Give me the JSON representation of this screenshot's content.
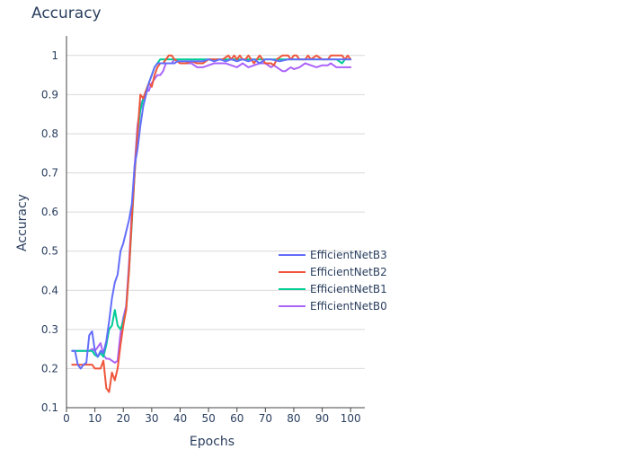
{
  "chart_data": {
    "type": "line",
    "title": "Accuracy",
    "xlabel": "Epochs",
    "ylabel": "Accuracy",
    "xlim": [
      0,
      105
    ],
    "ylim": [
      0.1,
      1.05
    ],
    "x_ticks": [
      0,
      10,
      20,
      30,
      40,
      50,
      60,
      70,
      80,
      90,
      100
    ],
    "y_ticks": [
      0.1,
      0.2,
      0.3,
      0.4,
      0.5,
      0.6,
      0.7,
      0.8,
      0.9,
      1
    ],
    "grid": "horizontal",
    "legend_position": "right",
    "series": [
      {
        "name": "EfficientNetB3",
        "color": "#636efa",
        "points": [
          [
            2,
            0.245
          ],
          [
            3,
            0.245
          ],
          [
            4,
            0.21
          ],
          [
            5,
            0.2
          ],
          [
            6,
            0.21
          ],
          [
            7,
            0.215
          ],
          [
            8,
            0.285
          ],
          [
            9,
            0.295
          ],
          [
            10,
            0.245
          ],
          [
            11,
            0.23
          ],
          [
            12,
            0.245
          ],
          [
            13,
            0.24
          ],
          [
            14,
            0.27
          ],
          [
            15,
            0.32
          ],
          [
            16,
            0.38
          ],
          [
            17,
            0.42
          ],
          [
            18,
            0.44
          ],
          [
            19,
            0.5
          ],
          [
            20,
            0.52
          ],
          [
            21,
            0.55
          ],
          [
            22,
            0.58
          ],
          [
            23,
            0.62
          ],
          [
            24,
            0.72
          ],
          [
            25,
            0.76
          ],
          [
            26,
            0.82
          ],
          [
            27,
            0.87
          ],
          [
            28,
            0.9
          ],
          [
            29,
            0.93
          ],
          [
            30,
            0.95
          ],
          [
            31,
            0.97
          ],
          [
            32,
            0.98
          ],
          [
            33,
            0.98
          ],
          [
            34,
            0.98
          ],
          [
            35,
            0.98
          ],
          [
            36,
            0.98
          ],
          [
            37,
            0.98
          ],
          [
            38,
            0.98
          ],
          [
            39,
            0.985
          ],
          [
            40,
            0.985
          ],
          [
            45,
            0.985
          ],
          [
            48,
            0.985
          ],
          [
            50,
            0.99
          ],
          [
            52,
            0.985
          ],
          [
            54,
            0.99
          ],
          [
            56,
            0.985
          ],
          [
            58,
            0.99
          ],
          [
            60,
            0.985
          ],
          [
            62,
            0.99
          ],
          [
            64,
            0.985
          ],
          [
            66,
            0.99
          ],
          [
            68,
            0.98
          ],
          [
            70,
            0.99
          ],
          [
            72,
            0.99
          ],
          [
            75,
            0.985
          ],
          [
            78,
            0.99
          ],
          [
            80,
            0.99
          ],
          [
            85,
            0.99
          ],
          [
            90,
            0.99
          ],
          [
            95,
            0.99
          ],
          [
            100,
            0.99
          ]
        ]
      },
      {
        "name": "EfficientNetB2",
        "color": "#ef553b",
        "points": [
          [
            2,
            0.21
          ],
          [
            3,
            0.21
          ],
          [
            4,
            0.21
          ],
          [
            5,
            0.21
          ],
          [
            6,
            0.21
          ],
          [
            7,
            0.21
          ],
          [
            8,
            0.21
          ],
          [
            9,
            0.21
          ],
          [
            10,
            0.2
          ],
          [
            11,
            0.2
          ],
          [
            12,
            0.2
          ],
          [
            13,
            0.22
          ],
          [
            14,
            0.15
          ],
          [
            15,
            0.14
          ],
          [
            16,
            0.19
          ],
          [
            17,
            0.17
          ],
          [
            18,
            0.2
          ],
          [
            19,
            0.26
          ],
          [
            20,
            0.31
          ],
          [
            21,
            0.35
          ],
          [
            22,
            0.45
          ],
          [
            23,
            0.58
          ],
          [
            24,
            0.7
          ],
          [
            25,
            0.8
          ],
          [
            26,
            0.9
          ],
          [
            27,
            0.89
          ],
          [
            28,
            0.91
          ],
          [
            29,
            0.93
          ],
          [
            30,
            0.92
          ],
          [
            31,
            0.95
          ],
          [
            32,
            0.97
          ],
          [
            33,
            0.98
          ],
          [
            34,
            0.98
          ],
          [
            35,
            0.99
          ],
          [
            36,
            1.0
          ],
          [
            37,
            1.0
          ],
          [
            38,
            0.99
          ],
          [
            40,
            0.98
          ],
          [
            42,
            0.98
          ],
          [
            44,
            0.985
          ],
          [
            46,
            0.98
          ],
          [
            48,
            0.98
          ],
          [
            50,
            0.99
          ],
          [
            55,
            0.99
          ],
          [
            57,
            1.0
          ],
          [
            58,
            0.99
          ],
          [
            59,
            1.0
          ],
          [
            60,
            0.99
          ],
          [
            61,
            1.0
          ],
          [
            62,
            0.99
          ],
          [
            63,
            0.99
          ],
          [
            64,
            1.0
          ],
          [
            65,
            0.99
          ],
          [
            66,
            0.98
          ],
          [
            67,
            0.99
          ],
          [
            68,
            1.0
          ],
          [
            69,
            0.99
          ],
          [
            70,
            0.98
          ],
          [
            72,
            0.98
          ],
          [
            73,
            0.975
          ],
          [
            74,
            0.99
          ],
          [
            76,
            1.0
          ],
          [
            78,
            1.0
          ],
          [
            79,
            0.99
          ],
          [
            80,
            1.0
          ],
          [
            81,
            1.0
          ],
          [
            82,
            0.99
          ],
          [
            84,
            0.99
          ],
          [
            85,
            1.0
          ],
          [
            86,
            0.99
          ],
          [
            88,
            1.0
          ],
          [
            90,
            0.99
          ],
          [
            92,
            0.99
          ],
          [
            93,
            1.0
          ],
          [
            95,
            1.0
          ],
          [
            97,
            1.0
          ],
          [
            98,
            0.99
          ],
          [
            99,
            1.0
          ],
          [
            100,
            0.99
          ]
        ]
      },
      {
        "name": "EfficientNetB1",
        "color": "#00cc96",
        "points": [
          [
            2,
            0.245
          ],
          [
            3,
            0.245
          ],
          [
            4,
            0.245
          ],
          [
            5,
            0.245
          ],
          [
            6,
            0.245
          ],
          [
            7,
            0.245
          ],
          [
            8,
            0.245
          ],
          [
            9,
            0.245
          ],
          [
            10,
            0.235
          ],
          [
            11,
            0.23
          ],
          [
            12,
            0.24
          ],
          [
            13,
            0.23
          ],
          [
            14,
            0.26
          ],
          [
            15,
            0.3
          ],
          [
            16,
            0.31
          ],
          [
            17,
            0.35
          ],
          [
            18,
            0.31
          ],
          [
            19,
            0.3
          ],
          [
            20,
            0.32
          ],
          [
            21,
            0.35
          ],
          [
            22,
            0.45
          ],
          [
            23,
            0.57
          ],
          [
            24,
            0.7
          ],
          [
            25,
            0.8
          ],
          [
            26,
            0.86
          ],
          [
            27,
            0.89
          ],
          [
            28,
            0.91
          ],
          [
            29,
            0.93
          ],
          [
            30,
            0.95
          ],
          [
            31,
            0.97
          ],
          [
            32,
            0.98
          ],
          [
            33,
            0.99
          ],
          [
            34,
            0.99
          ],
          [
            35,
            0.99
          ],
          [
            40,
            0.99
          ],
          [
            45,
            0.99
          ],
          [
            50,
            0.99
          ],
          [
            55,
            0.99
          ],
          [
            60,
            0.99
          ],
          [
            65,
            0.99
          ],
          [
            70,
            0.99
          ],
          [
            75,
            0.99
          ],
          [
            80,
            0.99
          ],
          [
            85,
            0.99
          ],
          [
            90,
            0.99
          ],
          [
            95,
            0.99
          ],
          [
            97,
            0.98
          ],
          [
            98,
            0.99
          ],
          [
            100,
            0.99
          ]
        ]
      },
      {
        "name": "EfficientNetB0",
        "color": "#ab63fa",
        "points": [
          [
            2,
            0.245
          ],
          [
            3,
            0.245
          ],
          [
            4,
            0.245
          ],
          [
            5,
            0.245
          ],
          [
            6,
            0.245
          ],
          [
            7,
            0.245
          ],
          [
            8,
            0.245
          ],
          [
            9,
            0.25
          ],
          [
            10,
            0.245
          ],
          [
            11,
            0.255
          ],
          [
            12,
            0.265
          ],
          [
            13,
            0.235
          ],
          [
            14,
            0.225
          ],
          [
            15,
            0.225
          ],
          [
            16,
            0.22
          ],
          [
            17,
            0.215
          ],
          [
            18,
            0.22
          ],
          [
            19,
            0.29
          ],
          [
            20,
            0.33
          ],
          [
            21,
            0.36
          ],
          [
            22,
            0.47
          ],
          [
            23,
            0.6
          ],
          [
            24,
            0.72
          ],
          [
            25,
            0.82
          ],
          [
            26,
            0.87
          ],
          [
            27,
            0.89
          ],
          [
            28,
            0.91
          ],
          [
            29,
            0.91
          ],
          [
            30,
            0.93
          ],
          [
            31,
            0.94
          ],
          [
            32,
            0.95
          ],
          [
            33,
            0.95
          ],
          [
            34,
            0.96
          ],
          [
            35,
            0.98
          ],
          [
            36,
            0.98
          ],
          [
            37,
            0.98
          ],
          [
            38,
            0.99
          ],
          [
            39,
            0.985
          ],
          [
            40,
            0.98
          ],
          [
            42,
            0.98
          ],
          [
            44,
            0.98
          ],
          [
            46,
            0.97
          ],
          [
            48,
            0.97
          ],
          [
            50,
            0.975
          ],
          [
            52,
            0.98
          ],
          [
            54,
            0.98
          ],
          [
            56,
            0.98
          ],
          [
            58,
            0.975
          ],
          [
            60,
            0.97
          ],
          [
            62,
            0.98
          ],
          [
            64,
            0.97
          ],
          [
            66,
            0.975
          ],
          [
            68,
            0.98
          ],
          [
            70,
            0.98
          ],
          [
            72,
            0.97
          ],
          [
            73,
            0.975
          ],
          [
            74,
            0.97
          ],
          [
            76,
            0.96
          ],
          [
            77,
            0.96
          ],
          [
            78,
            0.965
          ],
          [
            79,
            0.97
          ],
          [
            80,
            0.965
          ],
          [
            82,
            0.97
          ],
          [
            84,
            0.98
          ],
          [
            86,
            0.975
          ],
          [
            88,
            0.97
          ],
          [
            90,
            0.975
          ],
          [
            92,
            0.975
          ],
          [
            93,
            0.98
          ],
          [
            95,
            0.97
          ],
          [
            97,
            0.97
          ],
          [
            100,
            0.97
          ]
        ]
      }
    ]
  }
}
